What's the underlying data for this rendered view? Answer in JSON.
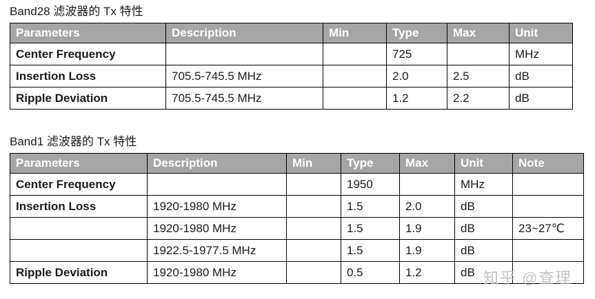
{
  "colors": {
    "header_bg": "#a6a6a6",
    "header_text": "#ffffff",
    "border": "#000000",
    "body_text": "#1a1a1a",
    "watermark_text": "#b0b0b0"
  },
  "tables": [
    {
      "title": "Band28 滤波器的 Tx 特性",
      "columns": [
        "Parameters",
        "Description",
        "Min",
        "Type",
        "Max",
        "Unit"
      ],
      "rows": [
        [
          "Center Frequency",
          "",
          "",
          "725",
          "",
          "MHz"
        ],
        [
          "Insertion Loss",
          "705.5-745.5 MHz",
          "",
          "2.0",
          "2.5",
          "dB"
        ],
        [
          "Ripple Deviation",
          "705.5-745.5 MHz",
          "",
          "1.2",
          "2.2",
          "dB"
        ]
      ]
    },
    {
      "title": "Band1 滤波器的 Tx 特性",
      "columns": [
        "Parameters",
        "Description",
        "Min",
        "Type",
        "Max",
        "Unit",
        "Note"
      ],
      "rows": [
        [
          "Center Frequency",
          "",
          "",
          "1950",
          "",
          "MHz",
          ""
        ],
        [
          "Insertion Loss",
          "1920-1980 MHz",
          "",
          "1.5",
          "2.0",
          "dB",
          ""
        ],
        [
          "",
          "1920-1980 MHz",
          "",
          "1.5",
          "1.9",
          "dB",
          "23~27℃"
        ],
        [
          "",
          "1922.5-1977.5 MHz",
          "",
          "1.5",
          "1.9",
          "dB",
          ""
        ],
        [
          "Ripple Deviation",
          "1920-1980 MHz",
          "",
          "0.5",
          "1.2",
          "dB",
          ""
        ]
      ]
    }
  ],
  "watermark": {
    "text": "知乎 @查理"
  }
}
